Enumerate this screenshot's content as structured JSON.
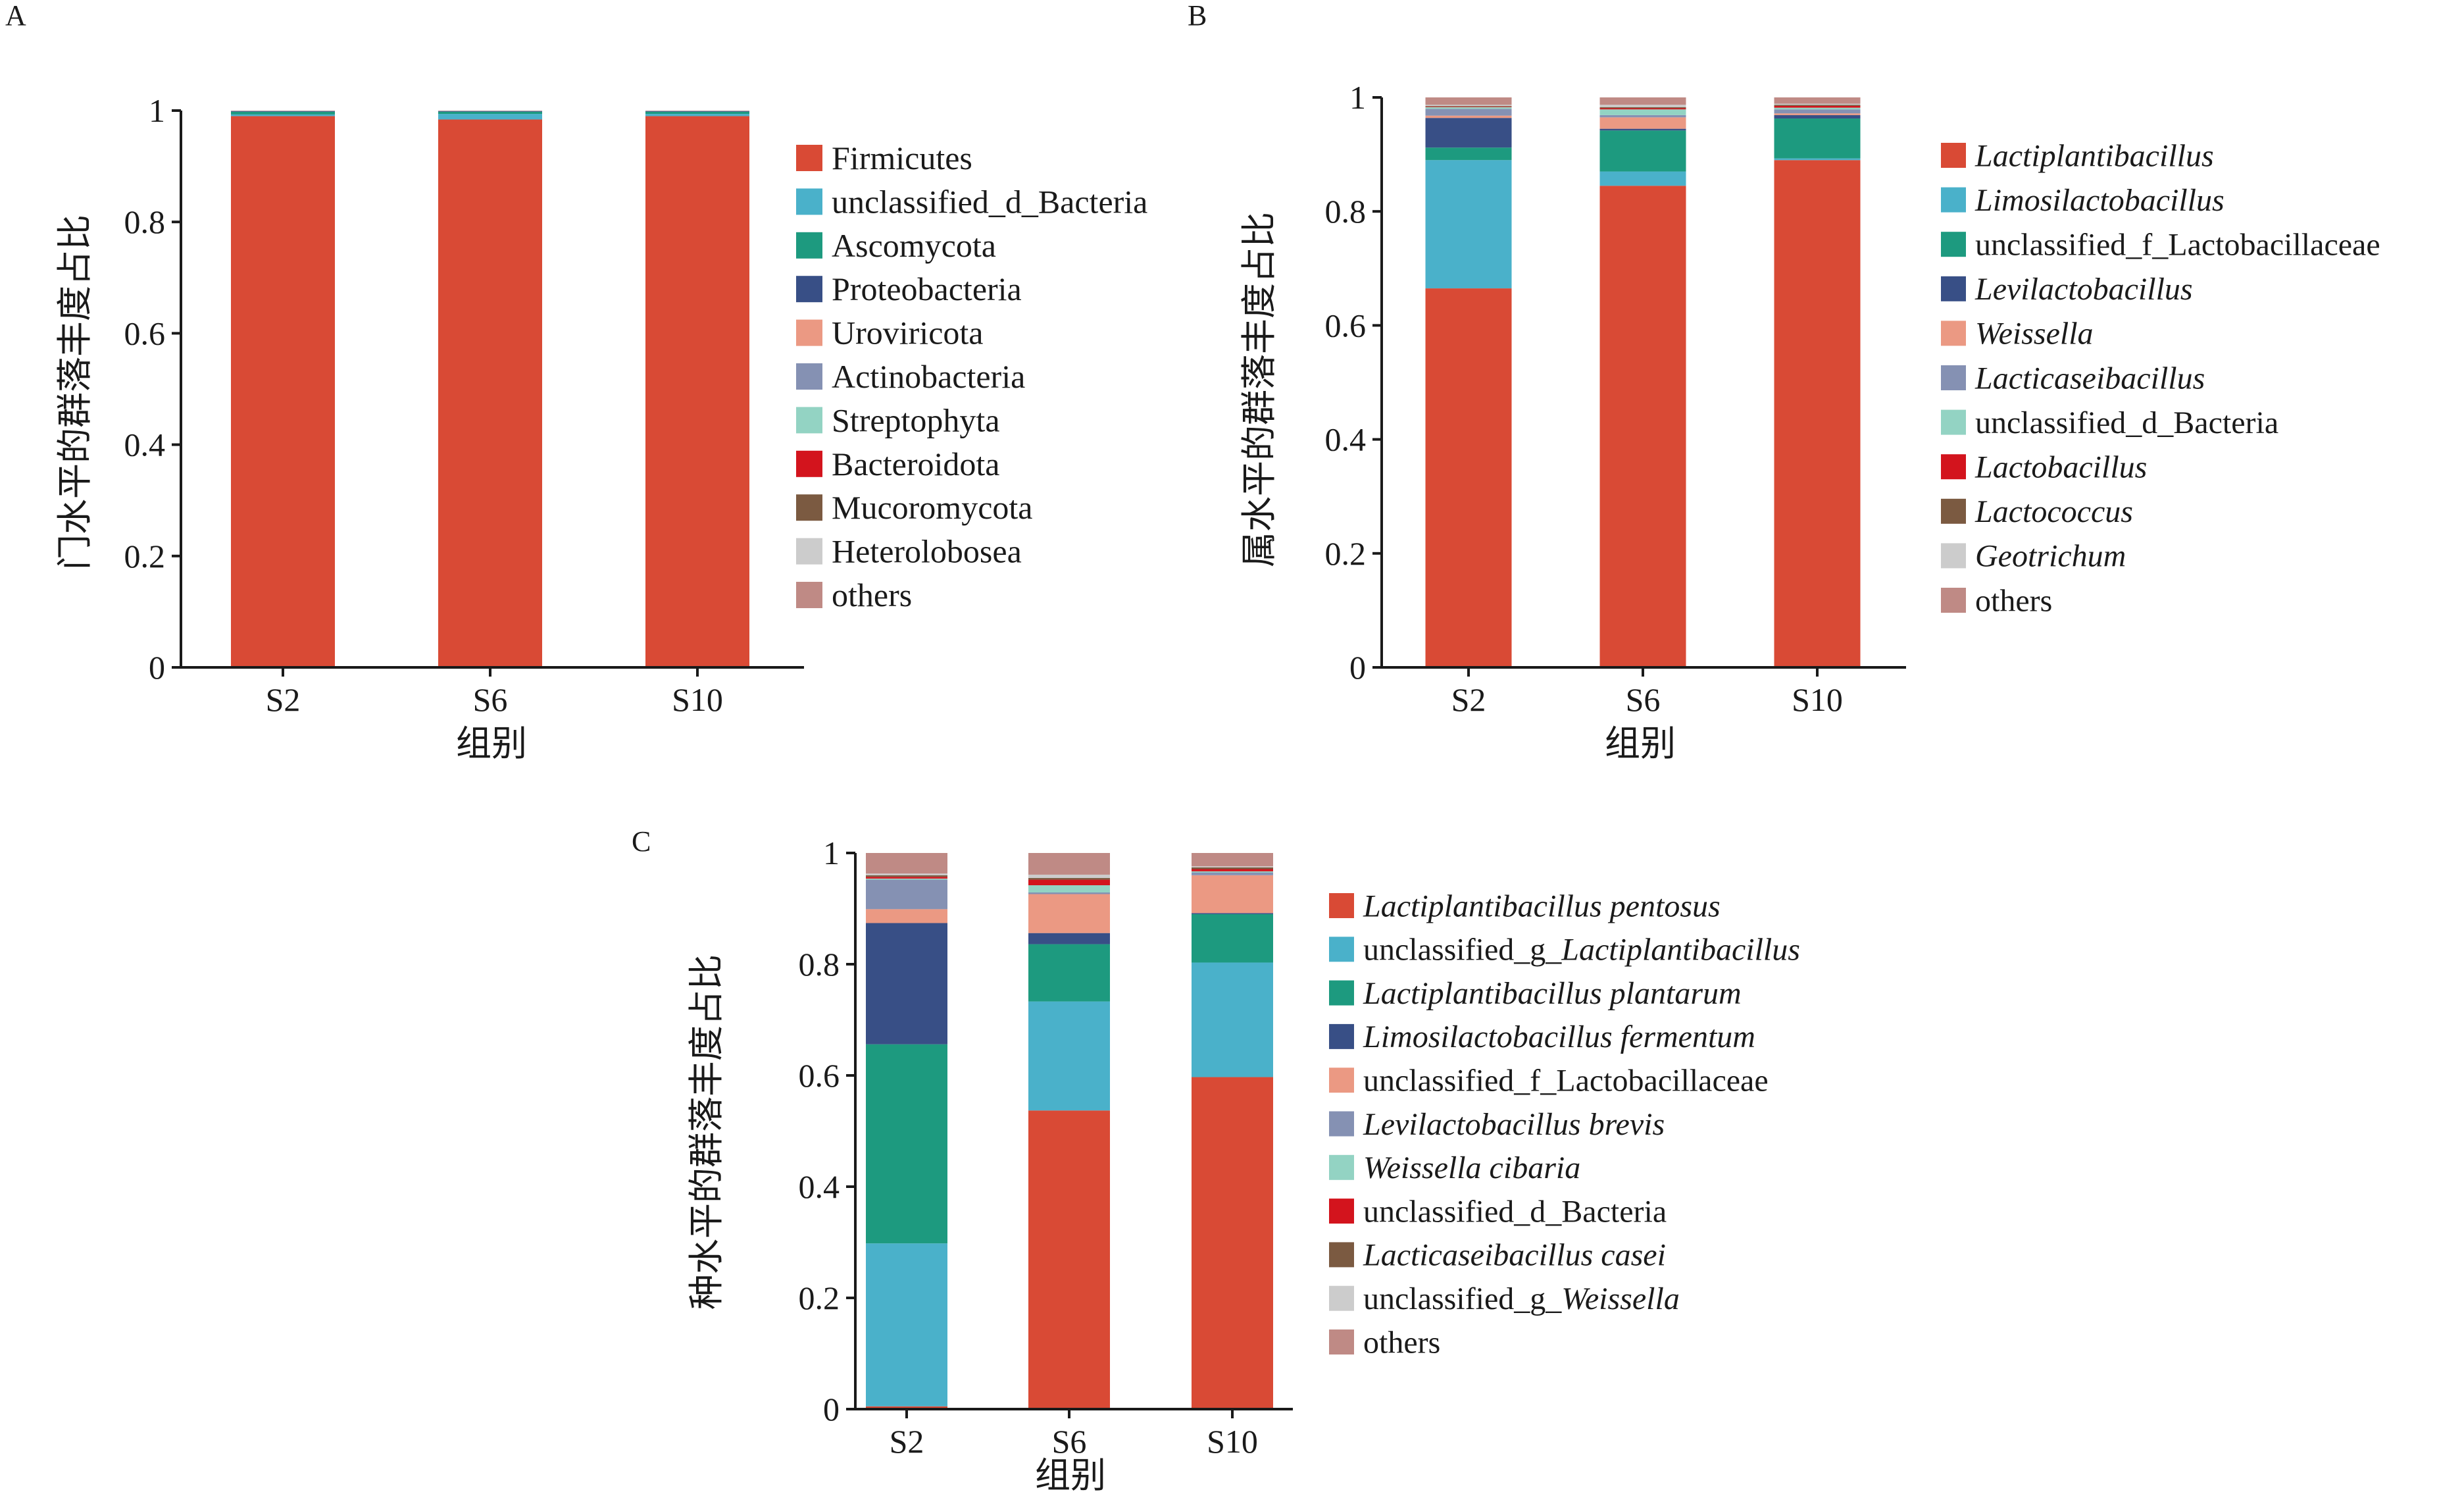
{
  "colors": [
    "#d94a35",
    "#4ab1ca",
    "#1d9a7f",
    "#384f86",
    "#eb9983",
    "#8591b3",
    "#93d3c3",
    "#d3141d",
    "#7b5a41",
    "#cccccc",
    "#bf8a85"
  ],
  "chart_data": [
    {
      "type": "bar",
      "stacked": true,
      "panel_label": "A",
      "title": "",
      "xlabel": "组别",
      "ylabel": "门水平的群落丰度占比",
      "ylim": [
        0,
        1
      ],
      "yticks": [
        "0",
        "0.2",
        "0.4",
        "0.6",
        "0.8",
        "1"
      ],
      "categories": [
        "S2",
        "S6",
        "S10"
      ],
      "legend_position": "right",
      "series": [
        {
          "name": "Firmicutes",
          "italic": false,
          "values": [
            0.99,
            0.984,
            0.99
          ]
        },
        {
          "name": "unclassified_d_Bacteria",
          "italic": false,
          "values": [
            0.003,
            0.01,
            0.004
          ]
        },
        {
          "name": "Ascomycota",
          "italic": false,
          "values": [
            0.005,
            0.004,
            0.004
          ]
        },
        {
          "name": "Proteobacteria",
          "italic": false,
          "values": [
            0.001,
            0.001,
            0.001
          ]
        },
        {
          "name": "Uroviricota",
          "italic": false,
          "values": [
            0.0005,
            0.0005,
            0.0005
          ]
        },
        {
          "name": "Actinobacteria",
          "italic": false,
          "values": [
            0.0005,
            0.0005,
            0.0005
          ]
        },
        {
          "name": "Streptophyta",
          "italic": false,
          "values": [
            0,
            0,
            0
          ]
        },
        {
          "name": "Bacteroidota",
          "italic": false,
          "values": [
            0,
            0,
            0
          ]
        },
        {
          "name": "Mucoromycota",
          "italic": false,
          "values": [
            0,
            0,
            0
          ]
        },
        {
          "name": "Heterolobosea",
          "italic": false,
          "values": [
            0,
            0,
            0
          ]
        },
        {
          "name": "others",
          "italic": false,
          "values": [
            0,
            0,
            0
          ]
        }
      ]
    },
    {
      "type": "bar",
      "stacked": true,
      "panel_label": "B",
      "title": "",
      "xlabel": "组别",
      "ylabel": "属水平的群落丰度占比",
      "ylim": [
        0,
        1
      ],
      "yticks": [
        "0",
        "0.2",
        "0.4",
        "0.6",
        "0.8",
        "1"
      ],
      "categories": [
        "S2",
        "S6",
        "S10"
      ],
      "legend_position": "right",
      "series": [
        {
          "name": "Lactiplantibacillus",
          "italic": true,
          "values": [
            0.665,
            0.845,
            0.89
          ]
        },
        {
          "name": "Limosilactobacillus",
          "italic": true,
          "values": [
            0.225,
            0.025,
            0.003
          ]
        },
        {
          "name": "unclassified_f_Lactobacillaceae",
          "italic": false,
          "values": [
            0.022,
            0.072,
            0.07
          ]
        },
        {
          "name": "Levilactobacillus",
          "italic": true,
          "values": [
            0.052,
            0.003,
            0.006
          ]
        },
        {
          "name": "Weissella",
          "italic": true,
          "values": [
            0.004,
            0.02,
            0.003
          ]
        },
        {
          "name": "Lacticaseibacillus",
          "italic": true,
          "values": [
            0.012,
            0.004,
            0.007
          ]
        },
        {
          "name": "unclassified_d_Bacteria",
          "italic": false,
          "values": [
            0.003,
            0.01,
            0.003
          ]
        },
        {
          "name": "Lactobacillus",
          "italic": true,
          "values": [
            0.001,
            0.002,
            0.003
          ]
        },
        {
          "name": "Lactococcus",
          "italic": true,
          "values": [
            0.001,
            0.002,
            0.002
          ]
        },
        {
          "name": "Geotrichum",
          "italic": true,
          "values": [
            0.002,
            0.004,
            0.002
          ]
        },
        {
          "name": "others",
          "italic": false,
          "values": [
            0.013,
            0.013,
            0.011
          ]
        }
      ]
    },
    {
      "type": "bar",
      "stacked": true,
      "panel_label": "C",
      "title": "",
      "xlabel": "组别",
      "ylabel": "种水平的群落丰度占比",
      "ylim": [
        0,
        1
      ],
      "yticks": [
        "0",
        "0.2",
        "0.4",
        "0.6",
        "0.8",
        "1"
      ],
      "categories": [
        "S2",
        "S6",
        "S10"
      ],
      "legend_position": "right",
      "series": [
        {
          "name": "Lactiplantibacillus pentosus",
          "italic": true,
          "values": [
            0.005,
            0.537,
            0.597
          ]
        },
        {
          "name": "unclassified_g_Lactiplantibacillus",
          "italic": false,
          "italic_suffix": "Lactiplantibacillus",
          "values": [
            0.293,
            0.196,
            0.206
          ]
        },
        {
          "name": "Lactiplantibacillus plantarum",
          "italic": true,
          "values": [
            0.358,
            0.103,
            0.087
          ]
        },
        {
          "name": "Limosilactobacillus fermentum",
          "italic": true,
          "values": [
            0.218,
            0.02,
            0.002
          ]
        },
        {
          "name": "unclassified_f_Lactobacillaceae",
          "italic": false,
          "values": [
            0.025,
            0.07,
            0.068
          ]
        },
        {
          "name": "Levilactobacillus brevis",
          "italic": true,
          "values": [
            0.053,
            0.003,
            0.005
          ]
        },
        {
          "name": "Weissella cibaria",
          "italic": true,
          "values": [
            0.002,
            0.013,
            0.002
          ]
        },
        {
          "name": "unclassified_d_Bacteria",
          "italic": false,
          "values": [
            0.003,
            0.01,
            0.004
          ]
        },
        {
          "name": "Lacticaseibacillus casei",
          "italic": true,
          "values": [
            0.003,
            0.003,
            0.003
          ]
        },
        {
          "name": "unclassified_g_Weissella",
          "italic": false,
          "italic_suffix": "Weissella",
          "values": [
            0.003,
            0.006,
            0.002
          ]
        },
        {
          "name": "others",
          "italic": false,
          "values": [
            0.037,
            0.039,
            0.024
          ]
        }
      ]
    }
  ]
}
